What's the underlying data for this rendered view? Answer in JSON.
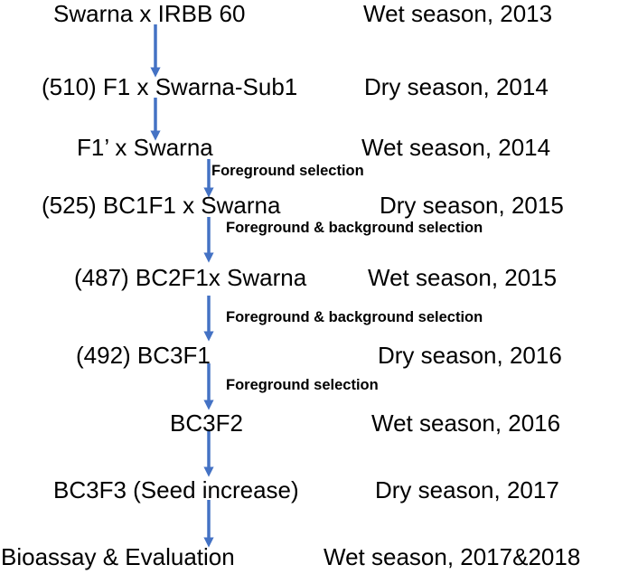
{
  "rows": [
    {
      "stage": "Swarna x IRBB 60",
      "season": "Wet season, 2013"
    },
    {
      "stage": "(510) F1 x Swarna-Sub1",
      "season": "Dry season, 2014"
    },
    {
      "stage": "F1’ x Swarna",
      "season": "Wet season, 2014"
    },
    {
      "stage": "(525) BC1F1 x Swarna",
      "season": "Dry season, 2015"
    },
    {
      "stage": "(487) BC2F1x Swarna",
      "season": "Wet season, 2015"
    },
    {
      "stage": "(492) BC3F1",
      "season": "Dry season, 2016"
    },
    {
      "stage": "BC3F2",
      "season": "Wet season, 2016"
    },
    {
      "stage": "BC3F3 (Seed increase)",
      "season": "Dry season, 2017"
    },
    {
      "stage": "Bioassay & Evaluation",
      "season": "Wet season, 2017&2018"
    }
  ],
  "notes": [
    "Foreground selection",
    "Foreground & background selection",
    "Foreground & background selection",
    "Foreground selection"
  ],
  "colors": {
    "arrow": "#4472C4",
    "text": "#000000"
  }
}
